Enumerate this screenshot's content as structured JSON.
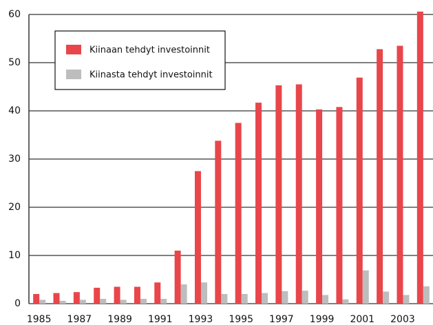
{
  "chart_data": {
    "type": "bar",
    "categories": [
      "1985",
      null,
      "1987",
      null,
      "1989",
      null,
      "1991",
      null,
      "1993",
      null,
      "1995",
      null,
      "1997",
      null,
      "1999",
      null,
      "2001",
      null,
      "2003",
      null
    ],
    "series": [
      {
        "name": "Kiinaan tehdyt investoinnit",
        "color": "#e8464b",
        "values": [
          2.0,
          2.2,
          2.4,
          3.3,
          3.5,
          3.5,
          4.4,
          11.0,
          27.5,
          33.8,
          37.5,
          41.7,
          45.3,
          45.5,
          40.3,
          40.8,
          46.9,
          52.8,
          53.5,
          60.6
        ]
      },
      {
        "name": "Kiinasta tehdyt investoinnit",
        "color": "#bdbdbd",
        "values": [
          0.8,
          0.6,
          0.8,
          1.0,
          0.8,
          1.0,
          1.0,
          4.0,
          4.4,
          2.0,
          2.0,
          2.2,
          2.6,
          2.7,
          1.8,
          0.9,
          6.9,
          2.5,
          1.8,
          3.6
        ]
      }
    ],
    "ylim": [
      0,
      60
    ],
    "yticks": [
      0,
      10,
      20,
      30,
      40,
      50,
      60
    ],
    "grid": true,
    "legend": "upper left"
  }
}
